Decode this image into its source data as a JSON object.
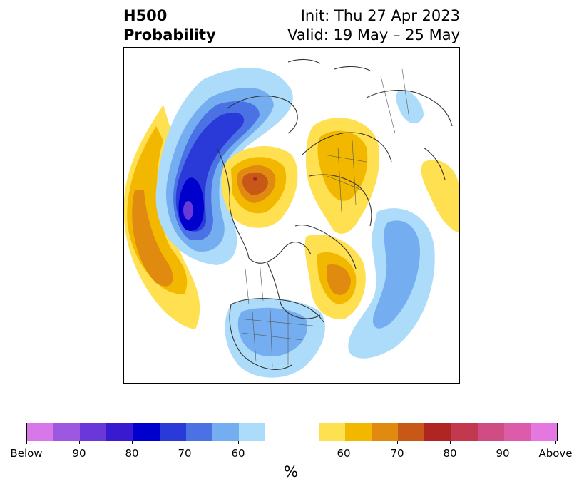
{
  "title": {
    "left_line1": "H500",
    "left_line2": "Probability",
    "init": "Init: Thu 27 Apr 2023",
    "valid": "Valid: 19 May – 25 May"
  },
  "colorbar": {
    "unit": "%",
    "ticks": [
      "Below",
      "90",
      "80",
      "70",
      "60",
      "60",
      "70",
      "80",
      "90",
      "Above"
    ],
    "colors_below": [
      "#d878e8",
      "#9c58e0",
      "#6a38d8",
      "#3a1ad0",
      "#0000cc",
      "#2a3ad8",
      "#4a72e4",
      "#74aef0",
      "#acdcfa"
    ],
    "color_neutral": "#ffffff",
    "colors_above": [
      "#ffe050",
      "#f2b800",
      "#e08a10",
      "#c85818",
      "#b02424",
      "#c2384e",
      "#d04c84",
      "#dc5caa",
      "#e478e0"
    ]
  },
  "map": {
    "projection": "north-polar-stereographic",
    "colors": {
      "blue_60": "#acdcfa",
      "blue_65": "#74aef0",
      "blue_70": "#4a72e4",
      "blue_75": "#2a3ad8",
      "blue_80": "#0000cc",
      "blue_85": "#3a1ad0",
      "blue_90": "#6a38d8",
      "orange_60": "#ffe050",
      "orange_65": "#f2b800",
      "orange_70": "#e08a10",
      "orange_75": "#c85818",
      "orange_80": "#b02424",
      "coastline": "#333333"
    }
  }
}
